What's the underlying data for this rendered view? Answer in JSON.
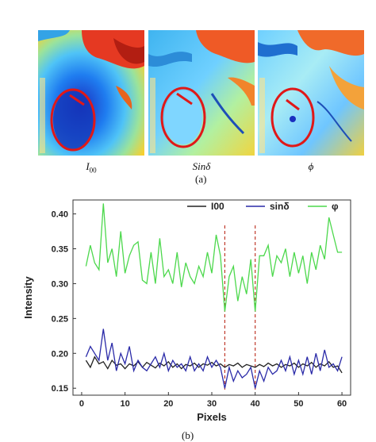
{
  "figure": {
    "panel_a_label": "(a)",
    "panel_b_label": "(b)",
    "heatmaps": [
      {
        "caption": "I",
        "caption_sub": "00"
      },
      {
        "caption": "Sinδ",
        "caption_sub": ""
      },
      {
        "caption": "ϕ",
        "caption_sub": ""
      }
    ]
  },
  "chart_data": {
    "type": "line",
    "title": "",
    "xlabel": "Pixels",
    "ylabel": "Intensity",
    "xlim": [
      -2,
      62
    ],
    "ylim": [
      0.14,
      0.42
    ],
    "xticks": [
      0,
      10,
      20,
      30,
      40,
      50,
      60
    ],
    "yticks": [
      0.15,
      0.2,
      0.25,
      0.3,
      0.35,
      0.4
    ],
    "ytick_labels": [
      "0.15",
      "0.20",
      "0.25",
      "0.30",
      "0.35",
      "0.40"
    ],
    "grid": false,
    "legend_position": "top",
    "vlines": [
      33,
      40
    ],
    "vline_color": "#c0392b",
    "x": [
      1,
      2,
      3,
      4,
      5,
      6,
      7,
      8,
      9,
      10,
      11,
      12,
      13,
      14,
      15,
      16,
      17,
      18,
      19,
      20,
      21,
      22,
      23,
      24,
      25,
      26,
      27,
      28,
      29,
      30,
      31,
      32,
      33,
      34,
      35,
      36,
      37,
      38,
      39,
      40,
      41,
      42,
      43,
      44,
      45,
      46,
      47,
      48,
      49,
      50,
      51,
      52,
      53,
      54,
      55,
      56,
      57,
      58,
      59,
      60
    ],
    "series": [
      {
        "name": "I00",
        "color": "#222222",
        "values": [
          0.19,
          0.18,
          0.195,
          0.185,
          0.188,
          0.178,
          0.19,
          0.183,
          0.185,
          0.178,
          0.185,
          0.182,
          0.188,
          0.18,
          0.187,
          0.183,
          0.179,
          0.186,
          0.182,
          0.188,
          0.18,
          0.185,
          0.178,
          0.184,
          0.182,
          0.186,
          0.18,
          0.185,
          0.183,
          0.187,
          0.182,
          0.185,
          0.18,
          0.184,
          0.182,
          0.186,
          0.18,
          0.184,
          0.182,
          0.18,
          0.184,
          0.181,
          0.186,
          0.182,
          0.185,
          0.18,
          0.184,
          0.182,
          0.186,
          0.18,
          0.185,
          0.182,
          0.187,
          0.18,
          0.185,
          0.182,
          0.188,
          0.18,
          0.182,
          0.172
        ]
      },
      {
        "name": "sinδ",
        "color": "#2a2aa8",
        "values": [
          0.195,
          0.21,
          0.2,
          0.19,
          0.235,
          0.19,
          0.215,
          0.175,
          0.2,
          0.185,
          0.21,
          0.175,
          0.19,
          0.18,
          0.175,
          0.185,
          0.195,
          0.18,
          0.2,
          0.175,
          0.19,
          0.18,
          0.185,
          0.175,
          0.195,
          0.175,
          0.185,
          0.175,
          0.195,
          0.18,
          0.19,
          0.18,
          0.15,
          0.18,
          0.16,
          0.175,
          0.165,
          0.17,
          0.18,
          0.15,
          0.175,
          0.16,
          0.18,
          0.17,
          0.175,
          0.19,
          0.175,
          0.195,
          0.17,
          0.19,
          0.17,
          0.195,
          0.17,
          0.2,
          0.175,
          0.205,
          0.18,
          0.185,
          0.175,
          0.195
        ]
      },
      {
        "name": "φ",
        "color": "#4cd84c",
        "values": [
          0.325,
          0.355,
          0.33,
          0.32,
          0.415,
          0.33,
          0.35,
          0.31,
          0.375,
          0.315,
          0.34,
          0.355,
          0.36,
          0.305,
          0.3,
          0.345,
          0.3,
          0.365,
          0.31,
          0.32,
          0.3,
          0.345,
          0.295,
          0.33,
          0.31,
          0.3,
          0.325,
          0.31,
          0.345,
          0.315,
          0.37,
          0.34,
          0.26,
          0.31,
          0.325,
          0.275,
          0.31,
          0.285,
          0.335,
          0.26,
          0.34,
          0.34,
          0.355,
          0.31,
          0.34,
          0.33,
          0.35,
          0.31,
          0.345,
          0.315,
          0.34,
          0.3,
          0.345,
          0.32,
          0.355,
          0.335,
          0.395,
          0.37,
          0.345,
          0.345
        ]
      }
    ]
  }
}
